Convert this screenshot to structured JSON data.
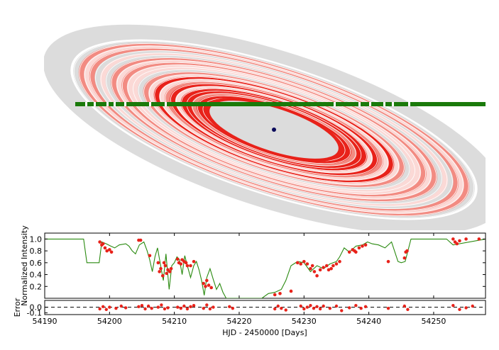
{
  "chart_data": [
    {
      "type": "diagram",
      "name": "ring-system-model",
      "colors": {
        "disk": "#dcdcdc",
        "ring_dark": "#e8221a",
        "ring_mid": "#f28b82",
        "ring_light": "#fbd9d6",
        "gap": "#ffffff",
        "star_track": "#1a7a0a",
        "planet": "#0a0a5a"
      },
      "ring_opacity_profile": [
        0.15,
        0.55,
        0.3,
        0.75,
        0.2,
        0.45,
        0.1,
        0.65,
        0.35,
        0.8,
        0.25,
        0.5,
        0.15,
        0.7,
        0.4,
        0.9,
        0.3,
        0.6,
        0.95,
        0.5,
        0.85,
        1.0,
        0.7,
        0.9,
        1.0
      ]
    },
    {
      "type": "line",
      "name": "light-curve",
      "xlim": [
        54190,
        54258
      ],
      "ylim": [
        0.0,
        1.1
      ],
      "yticks": [
        "1.0",
        "0.8",
        "0.6",
        "0.4",
        "0.2"
      ],
      "ytick_values": [
        1.0,
        0.8,
        0.6,
        0.4,
        0.2
      ],
      "ylabel_lines": [
        "Normalized Intensity"
      ],
      "series": [
        {
          "name": "model",
          "color": "#2a8a10",
          "x": [
            54190,
            54196.0,
            54196.5,
            54198.4,
            54198.8,
            54199.5,
            54200.2,
            54200.8,
            54201.5,
            54202.5,
            54203.0,
            54203.5,
            54204.0,
            54204.6,
            54205.3,
            54205.8,
            54206.2,
            54206.6,
            54207.0,
            54207.4,
            54207.8,
            54208.3,
            54208.7,
            54209.2,
            54209.6,
            54210.0,
            54210.4,
            54210.8,
            54211.2,
            54211.6,
            54212.0,
            54212.5,
            54213.0,
            54213.4,
            54213.8,
            54214.2,
            54214.6,
            54215.0,
            54215.5,
            54216.0,
            54216.5,
            54217.0,
            54217.5,
            54218.0,
            54223.5,
            54224.5,
            54225.5,
            54226.5,
            54227.2,
            54228.0,
            54229.0,
            54230.0,
            54231.0,
            54232.0,
            54233.0,
            54234.0,
            54235.0,
            54235.5,
            54236.2,
            54237.0,
            54238.0,
            54239.0,
            54239.8,
            54240.5,
            54241.5,
            54242.5,
            54243.5,
            54244.5,
            54245.0,
            54245.6,
            54246.5,
            54252.0,
            54253.0,
            54258
          ],
          "y": [
            1.0,
            1.0,
            0.6,
            0.6,
            0.95,
            0.92,
            0.88,
            0.85,
            0.9,
            0.92,
            0.88,
            0.8,
            0.75,
            0.9,
            0.95,
            0.8,
            0.65,
            0.45,
            0.7,
            0.85,
            0.6,
            0.3,
            0.75,
            0.15,
            0.55,
            0.6,
            0.7,
            0.65,
            0.4,
            0.72,
            0.55,
            0.35,
            0.55,
            0.62,
            0.48,
            0.3,
            0.05,
            0.35,
            0.5,
            0.32,
            0.15,
            0.25,
            0.1,
            0.0,
            0.0,
            0.08,
            0.1,
            0.15,
            0.3,
            0.55,
            0.62,
            0.6,
            0.45,
            0.55,
            0.5,
            0.58,
            0.62,
            0.7,
            0.85,
            0.78,
            0.88,
            0.9,
            0.95,
            0.92,
            0.9,
            0.85,
            0.95,
            0.62,
            0.6,
            0.62,
            1.0,
            1.0,
            0.9,
            1.0
          ]
        },
        {
          "name": "data",
          "color": "#e8221a",
          "x": [
            54198.5,
            54198.8,
            54199.0,
            54199.3,
            54199.6,
            54200.0,
            54200.3,
            54204.5,
            54204.8,
            54206.2,
            54207.5,
            54207.7,
            54207.9,
            54208.2,
            54208.4,
            54208.6,
            54208.8,
            54209.0,
            54209.3,
            54209.5,
            54210.5,
            54210.7,
            54211.0,
            54211.2,
            54211.5,
            54211.8,
            54212.0,
            54212.5,
            54213.0,
            54214.5,
            54214.8,
            54215.0,
            54215.3,
            54215.7,
            54225.5,
            54226.3,
            54228.0,
            54229.0,
            54229.5,
            54230.0,
            54230.5,
            54231.0,
            54231.3,
            54231.6,
            54232.0,
            54232.5,
            54233.0,
            54233.5,
            54233.8,
            54234.2,
            54234.5,
            54235.0,
            54235.5,
            54237.0,
            54237.5,
            54237.8,
            54238.0,
            54238.5,
            54239.0,
            54239.5,
            54243.0,
            54245.5,
            54245.7,
            54245.9,
            54253.0,
            54253.3,
            54253.6,
            54254.0,
            54255.0,
            54257.0
          ],
          "y": [
            0.95,
            0.9,
            0.92,
            0.85,
            0.8,
            0.82,
            0.78,
            0.98,
            0.98,
            0.72,
            0.6,
            0.45,
            0.5,
            0.38,
            0.6,
            0.55,
            0.42,
            0.48,
            0.45,
            0.5,
            0.66,
            0.6,
            0.58,
            0.65,
            0.62,
            0.6,
            0.55,
            0.55,
            0.62,
            0.25,
            0.2,
            0.3,
            0.22,
            0.18,
            0.06,
            0.08,
            0.12,
            0.6,
            0.58,
            0.62,
            0.58,
            0.5,
            0.55,
            0.45,
            0.38,
            0.48,
            0.52,
            0.55,
            0.48,
            0.5,
            0.55,
            0.58,
            0.62,
            0.78,
            0.82,
            0.8,
            0.78,
            0.85,
            0.88,
            0.9,
            0.62,
            0.68,
            0.78,
            0.8,
            1.0,
            0.95,
            0.92,
            0.97,
            1.0,
            1.0
          ]
        }
      ]
    },
    {
      "type": "scatter",
      "name": "residuals",
      "xlim": [
        54190,
        54258
      ],
      "ylim": [
        -0.13,
        0.12
      ],
      "xticks": [
        "54190",
        "54200",
        "54210",
        "54220",
        "54230",
        "54240",
        "54250"
      ],
      "xtick_values": [
        54190,
        54200,
        54210,
        54220,
        54230,
        54240,
        54250
      ],
      "yticks": [
        "0.0",
        "-0.1"
      ],
      "ytick_values": [
        0.0,
        -0.1
      ],
      "ylabel": "Error",
      "xlabel": "HJD - 2450000 [Days]",
      "reference_line": 0.0,
      "series": [
        {
          "name": "residual",
          "color": "#e8221a",
          "x": [
            54198.5,
            54199.0,
            54199.5,
            54200.0,
            54201.0,
            54201.8,
            54202.5,
            54204.5,
            54205.0,
            54205.5,
            54206.0,
            54206.5,
            54207.5,
            54208.0,
            54208.5,
            54209.0,
            54210.5,
            54211.0,
            54211.5,
            54212.0,
            54212.5,
            54213.0,
            54214.5,
            54215.0,
            54215.5,
            54216.0,
            54218.5,
            54219.0,
            54225.5,
            54226.0,
            54226.5,
            54227.2,
            54229.5,
            54230.0,
            54230.5,
            54231.0,
            54231.5,
            54232.0,
            54232.5,
            54233.0,
            54234.0,
            54235.0,
            54235.8,
            54237.0,
            54238.0,
            54238.8,
            54239.5,
            54243.0,
            54245.5,
            54246.0,
            54253.0,
            54254.0,
            54255.0,
            54256.0
          ],
          "y": [
            -0.03,
            0.01,
            -0.04,
            0.0,
            -0.02,
            0.02,
            -0.01,
            0.01,
            0.03,
            -0.03,
            0.02,
            -0.02,
            0.0,
            0.04,
            -0.03,
            -0.01,
            0.0,
            -0.02,
            0.02,
            -0.03,
            0.01,
            0.03,
            -0.02,
            0.04,
            -0.03,
            0.0,
            0.01,
            -0.02,
            -0.03,
            0.02,
            -0.02,
            -0.05,
            0.02,
            -0.03,
            0.0,
            0.03,
            -0.02,
            0.01,
            -0.03,
            0.02,
            -0.02,
            0.02,
            -0.06,
            -0.01,
            0.03,
            -0.02,
            0.01,
            -0.02,
            0.02,
            -0.04,
            0.03,
            -0.04,
            -0.01,
            0.02
          ]
        }
      ]
    }
  ]
}
